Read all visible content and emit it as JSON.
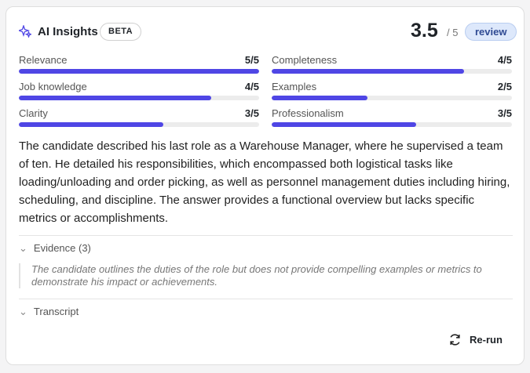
{
  "header": {
    "title": "AI Insights",
    "badge": "BETA",
    "rating": {
      "value": 3.5,
      "max": 5,
      "max_label": "/ 5"
    },
    "status": "review"
  },
  "metrics": [
    {
      "name": "Relevance",
      "score": 5,
      "label": "5/5"
    },
    {
      "name": "Completeness",
      "score": 4,
      "label": "4/5"
    },
    {
      "name": "Job knowledge",
      "score": 4,
      "label": "4/5"
    },
    {
      "name": "Examples",
      "score": 2,
      "label": "2/5"
    },
    {
      "name": "Clarity",
      "score": 3,
      "label": "3/5"
    },
    {
      "name": "Professionalism",
      "score": 3,
      "label": "3/5"
    }
  ],
  "summary": "The candidate described his last role as a Warehouse Manager, where he supervised a team of ten. He detailed his responsibilities, which encompassed both logistical tasks like loading/unloading and order picking, as well as personnel management duties including hiring, scheduling, and discipline. The answer provides a functional overview but lacks specific metrics or accomplishments.",
  "evidence": {
    "title": "Evidence (3)",
    "text": "The candidate outlines the duties of the role but does not provide compelling examples or metrics to demonstrate his impact or achievements."
  },
  "transcript": {
    "title": "Transcript"
  },
  "actions": {
    "rerun": "Re-run"
  }
}
